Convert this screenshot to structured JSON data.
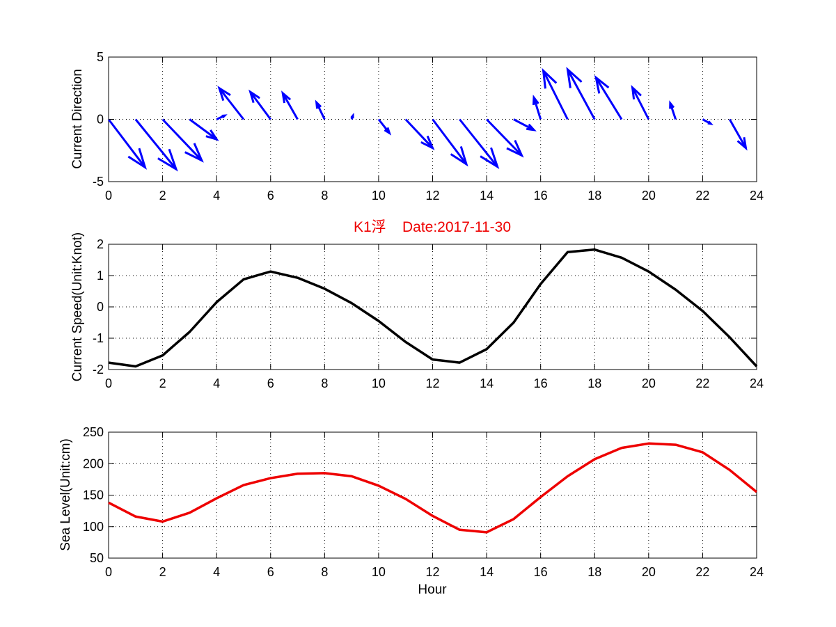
{
  "colors": {
    "arrow": "#0000ff",
    "speed_line": "#000000",
    "sea_line": "#ee0000",
    "title": "#ee0000"
  },
  "chart_data": [
    {
      "type": "quiver",
      "ylabel": "Current Direction",
      "xlim": [
        0,
        24
      ],
      "ylim": [
        -5,
        5
      ],
      "xticks": [
        0,
        2,
        4,
        6,
        8,
        10,
        12,
        14,
        16,
        18,
        20,
        22,
        24
      ],
      "yticks": [
        -5,
        0,
        5
      ],
      "arrows": [
        {
          "x": 0,
          "u": 1.35,
          "v": -3.85
        },
        {
          "x": 1,
          "u": 1.5,
          "v": -4.0
        },
        {
          "x": 2,
          "u": 1.45,
          "v": -3.3
        },
        {
          "x": 3,
          "u": 1.0,
          "v": -1.6
        },
        {
          "x": 4,
          "u": 0.3,
          "v": 0.3
        },
        {
          "x": 5,
          "u": -0.9,
          "v": 2.5
        },
        {
          "x": 6,
          "u": -0.75,
          "v": 2.2
        },
        {
          "x": 7,
          "u": -0.55,
          "v": 2.1
        },
        {
          "x": 8,
          "u": -0.3,
          "v": 1.35
        },
        {
          "x": 9,
          "u": 0.05,
          "v": 0.3
        },
        {
          "x": 10,
          "u": 0.4,
          "v": -1.1
        },
        {
          "x": 11,
          "u": 1.0,
          "v": -2.3
        },
        {
          "x": 12,
          "u": 1.25,
          "v": -3.6
        },
        {
          "x": 13,
          "u": 1.4,
          "v": -3.8
        },
        {
          "x": 14,
          "u": 1.3,
          "v": -2.9
        },
        {
          "x": 15,
          "u": 0.75,
          "v": -0.85
        },
        {
          "x": 16,
          "u": -0.25,
          "v": 1.75
        },
        {
          "x": 17,
          "u": -0.9,
          "v": 3.9
        },
        {
          "x": 18,
          "u": -1.0,
          "v": 4.0
        },
        {
          "x": 19,
          "u": -0.95,
          "v": 3.35
        },
        {
          "x": 20,
          "u": -0.6,
          "v": 2.55
        },
        {
          "x": 21,
          "u": -0.2,
          "v": 1.3
        },
        {
          "x": 22,
          "u": 0.3,
          "v": -0.35
        },
        {
          "x": 23,
          "u": 0.6,
          "v": -2.3
        }
      ]
    },
    {
      "type": "line",
      "title": "K1浮    Date:2017-11-30",
      "ylabel": "Current Speed(Unit:Knot)",
      "xlim": [
        0,
        24
      ],
      "ylim": [
        -2,
        2
      ],
      "xticks": [
        0,
        2,
        4,
        6,
        8,
        10,
        12,
        14,
        16,
        18,
        20,
        22,
        24
      ],
      "yticks": [
        -2,
        -1,
        0,
        1,
        2
      ],
      "x": [
        0,
        1,
        2,
        3,
        4,
        5,
        6,
        7,
        8,
        9,
        10,
        11,
        12,
        13,
        14,
        15,
        16,
        17,
        18,
        19,
        20,
        21,
        22,
        23,
        24
      ],
      "y": [
        -1.78,
        -1.9,
        -1.55,
        -0.8,
        0.15,
        0.88,
        1.13,
        0.93,
        0.58,
        0.12,
        -0.45,
        -1.12,
        -1.68,
        -1.78,
        -1.35,
        -0.5,
        0.73,
        1.75,
        1.83,
        1.57,
        1.13,
        0.55,
        -0.13,
        -0.97,
        -1.9
      ]
    },
    {
      "type": "line",
      "ylabel": "Sea Level(Unit:cm)",
      "xlabel": "Hour",
      "xlim": [
        0,
        24
      ],
      "ylim": [
        50,
        250
      ],
      "xticks": [
        0,
        2,
        4,
        6,
        8,
        10,
        12,
        14,
        16,
        18,
        20,
        22,
        24
      ],
      "yticks": [
        50,
        100,
        150,
        200,
        250
      ],
      "x": [
        0,
        1,
        2,
        3,
        4,
        5,
        6,
        7,
        8,
        9,
        10,
        11,
        12,
        13,
        14,
        15,
        16,
        17,
        18,
        19,
        20,
        21,
        22,
        23,
        24
      ],
      "y": [
        138,
        116,
        108,
        122,
        145,
        166,
        177,
        184,
        185,
        180,
        165,
        144,
        117,
        95,
        91,
        112,
        147,
        180,
        207,
        225,
        232,
        230,
        218,
        190,
        155
      ]
    }
  ]
}
